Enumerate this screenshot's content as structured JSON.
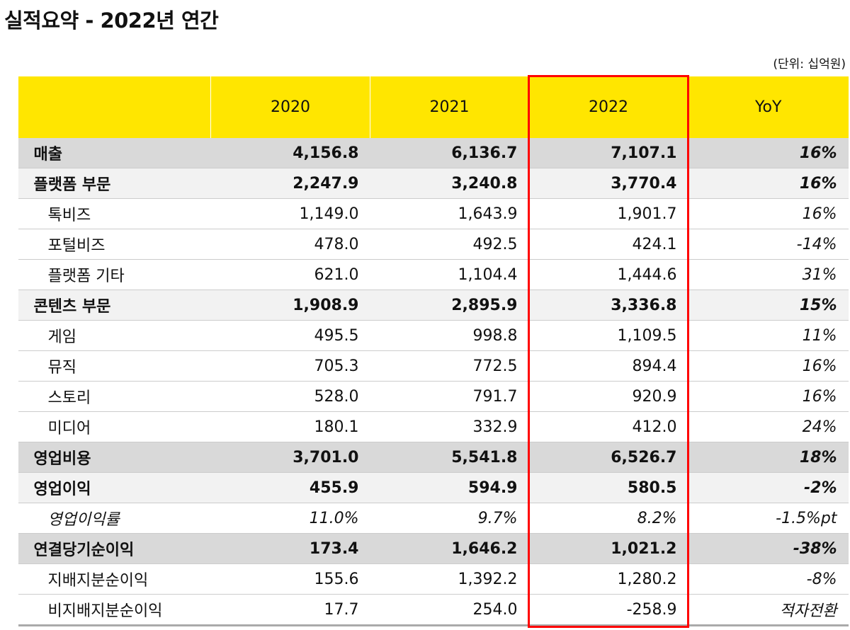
{
  "header": {
    "title": "실적요약 - 2022년 연간",
    "unit": "(단위: 십억원)"
  },
  "table": {
    "columns": [
      "2020",
      "2021",
      "2022",
      "YoY"
    ],
    "rows": [
      [
        "매출",
        "4,156.8",
        "6,136.7",
        "7,107.1",
        "16%"
      ],
      [
        "플랫폼 부문",
        "2,247.9",
        "3,240.8",
        "3,770.4",
        "16%"
      ],
      [
        "톡비즈",
        "1,149.0",
        "1,643.9",
        "1,901.7",
        "16%"
      ],
      [
        "포털비즈",
        "478.0",
        "492.5",
        "424.1",
        "-14%"
      ],
      [
        "플랫폼 기타",
        "621.0",
        "1,104.4",
        "1,444.6",
        "31%"
      ],
      [
        "콘텐츠 부문",
        "1,908.9",
        "2,895.9",
        "3,336.8",
        "15%"
      ],
      [
        "게임",
        "495.5",
        "998.8",
        "1,109.5",
        "11%"
      ],
      [
        "뮤직",
        "705.3",
        "772.5",
        "894.4",
        "16%"
      ],
      [
        "스토리",
        "528.0",
        "791.7",
        "920.9",
        "16%"
      ],
      [
        "미디어",
        "180.1",
        "332.9",
        "412.0",
        "24%"
      ],
      [
        "영업비용",
        "3,701.0",
        "5,541.8",
        "6,526.7",
        "18%"
      ],
      [
        "영업이익",
        "455.9",
        "594.9",
        "580.5",
        "-2%"
      ],
      [
        "영업이익률",
        "11.0%",
        "9.7%",
        "8.2%",
        "-1.5%pt"
      ],
      [
        "연결당기순이익",
        "173.4",
        "1,646.2",
        "1,021.2",
        "-38%"
      ],
      [
        "지배지분순이익",
        "155.6",
        "1,392.2",
        "1,280.2",
        "-8%"
      ],
      [
        "비지배지분순이익",
        "17.7",
        "254.0",
        "-258.9",
        "적자전환"
      ]
    ]
  }
}
